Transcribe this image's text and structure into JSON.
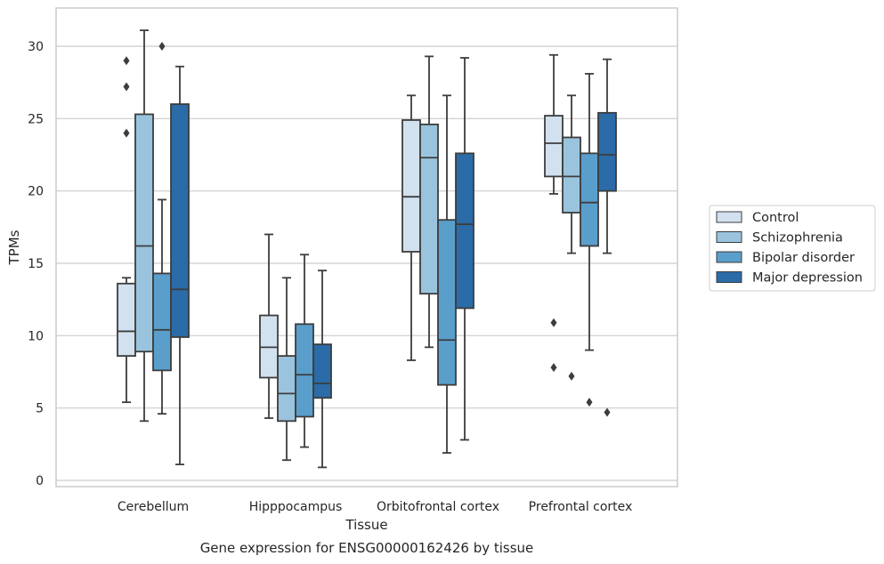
{
  "caption": "Gene expression for ENSG00000162426 by tissue",
  "chart_data": {
    "type": "boxplot",
    "xlabel": "Tissue",
    "ylabel": "TPMs",
    "ylim": [
      -0.5,
      32.5
    ],
    "yticks": [
      0,
      5,
      10,
      15,
      20,
      25,
      30
    ],
    "grid": "horizontal",
    "legend_position": "right",
    "categories": [
      "Cerebellum",
      "Hipppocampus",
      "Orbitofrontal cortex",
      "Prefrontal cortex"
    ],
    "series": [
      {
        "name": "Control",
        "color": "#d1e1f0",
        "boxes": [
          {
            "whisker_low": 5.4,
            "q1": 8.6,
            "median": 10.3,
            "q3": 13.6,
            "whisker_high": 14.0,
            "outliers": [
              24.0,
              27.2,
              29.0
            ]
          },
          {
            "whisker_low": 4.3,
            "q1": 7.1,
            "median": 9.2,
            "q3": 11.4,
            "whisker_high": 17.0,
            "outliers": []
          },
          {
            "whisker_low": 8.3,
            "q1": 15.8,
            "median": 19.6,
            "q3": 24.9,
            "whisker_high": 26.6,
            "outliers": []
          },
          {
            "whisker_low": 19.8,
            "q1": 21.0,
            "median": 23.3,
            "q3": 25.2,
            "whisker_high": 29.4,
            "outliers": [
              7.8,
              10.9
            ]
          }
        ]
      },
      {
        "name": "Schizophrenia",
        "color": "#9ac4de",
        "boxes": [
          {
            "whisker_low": 4.1,
            "q1": 8.9,
            "median": 16.2,
            "q3": 25.3,
            "whisker_high": 31.1,
            "outliers": []
          },
          {
            "whisker_low": 1.4,
            "q1": 4.1,
            "median": 6.0,
            "q3": 8.6,
            "whisker_high": 14.0,
            "outliers": []
          },
          {
            "whisker_low": 9.2,
            "q1": 12.9,
            "median": 22.3,
            "q3": 24.6,
            "whisker_high": 29.3,
            "outliers": []
          },
          {
            "whisker_low": 15.7,
            "q1": 18.5,
            "median": 21.0,
            "q3": 23.7,
            "whisker_high": 26.6,
            "outliers": [
              7.2
            ]
          }
        ]
      },
      {
        "name": "Bipolar disorder",
        "color": "#5a9ecc",
        "boxes": [
          {
            "whisker_low": 4.6,
            "q1": 7.6,
            "median": 10.4,
            "q3": 14.3,
            "whisker_high": 19.4,
            "outliers": [
              30.0
            ]
          },
          {
            "whisker_low": 2.3,
            "q1": 4.4,
            "median": 7.3,
            "q3": 10.8,
            "whisker_high": 15.6,
            "outliers": []
          },
          {
            "whisker_low": 1.9,
            "q1": 6.6,
            "median": 9.7,
            "q3": 18.0,
            "whisker_high": 26.6,
            "outliers": []
          },
          {
            "whisker_low": 9.0,
            "q1": 16.2,
            "median": 19.2,
            "q3": 22.6,
            "whisker_high": 28.1,
            "outliers": [
              5.4
            ]
          }
        ]
      },
      {
        "name": "Major depression",
        "color": "#2a6ba8",
        "boxes": [
          {
            "whisker_low": 1.1,
            "q1": 9.9,
            "median": 13.2,
            "q3": 26.0,
            "whisker_high": 28.6,
            "outliers": []
          },
          {
            "whisker_low": 0.9,
            "q1": 5.7,
            "median": 6.7,
            "q3": 9.4,
            "whisker_high": 14.5,
            "outliers": []
          },
          {
            "whisker_low": 2.8,
            "q1": 11.9,
            "median": 17.7,
            "q3": 22.6,
            "whisker_high": 29.2,
            "outliers": []
          },
          {
            "whisker_low": 15.7,
            "q1": 20.0,
            "median": 22.5,
            "q3": 25.4,
            "whisker_high": 29.1,
            "outliers": [
              4.7
            ]
          }
        ]
      }
    ]
  }
}
